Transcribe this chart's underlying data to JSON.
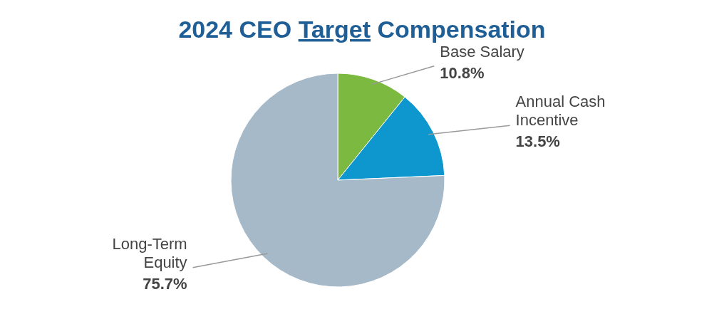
{
  "chart_data": {
    "type": "pie",
    "title": "2024 CEO Target Compensation",
    "categories": [
      "Base Salary",
      "Annual Cash Incentive",
      "Long-Term Equity"
    ],
    "values": [
      10.8,
      13.5,
      75.7
    ],
    "colors": [
      "#7cb940",
      "#0e97cf",
      "#a5b9c8"
    ],
    "value_labels": [
      "10.8%",
      "13.5%",
      "75.7%"
    ],
    "legend": false
  }
}
